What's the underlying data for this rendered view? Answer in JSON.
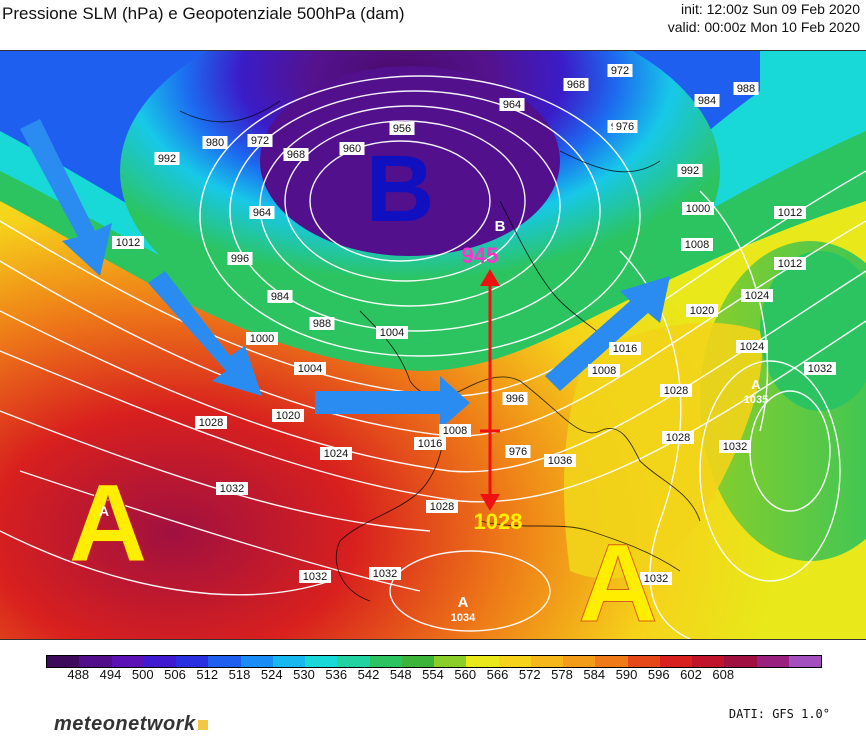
{
  "header": {
    "title": "Pressione SLM (hPa) e Geopotenziale 500hPa (dam)",
    "init": "init: 12:00z Sun 09 Feb 2020",
    "valid": "valid: 00:00z Mon 10 Feb 2020"
  },
  "map": {
    "systems": [
      {
        "letter": "B",
        "kind": "low",
        "color": "#1010c0"
      },
      {
        "letter": "A",
        "kind": "high-west",
        "color": "#ffee00"
      },
      {
        "letter": "A",
        "kind": "high-med",
        "color": "#ffee00"
      }
    ],
    "small_centers": [
      {
        "letter": "B",
        "value": "945"
      },
      {
        "letter": "A",
        "value": "1034"
      },
      {
        "letter": "A",
        "value": "1035"
      },
      {
        "letter": "A",
        "value": ""
      }
    ],
    "annotations": {
      "low_value": "945",
      "high_value": "1028",
      "low_color": "#ff33cc",
      "high_color": "#ffee00",
      "arrow_color": "#ee1111",
      "flow_arrow_color": "#2a8cf0"
    },
    "isobar_labels": [
      "972",
      "980",
      "964",
      "968",
      "976",
      "984",
      "988",
      "992",
      "1000",
      "1012",
      "956",
      "960",
      "972",
      "968",
      "964",
      "980",
      "992",
      "996",
      "984",
      "988",
      "1000",
      "1004",
      "1008",
      "1012",
      "1016",
      "1020",
      "1024",
      "1028",
      "1032",
      "976",
      "996",
      "1008",
      "1020",
      "1024",
      "1028",
      "1032",
      "1032",
      "1028",
      "1032",
      "1004",
      "1016",
      "1008",
      "1024",
      "1032",
      "1012",
      "1028",
      "1032",
      "1036"
    ],
    "geopotential_scale": [
      "488",
      "494",
      "500",
      "506",
      "512",
      "518",
      "524",
      "530",
      "536",
      "542",
      "548",
      "554",
      "560",
      "566",
      "572",
      "578",
      "584",
      "590",
      "596",
      "602",
      "608"
    ],
    "scale_colors": [
      "#3d0a5c",
      "#520e8a",
      "#5b11b6",
      "#3f1ad0",
      "#2a2fe0",
      "#1e5ff0",
      "#1a8cf5",
      "#17b8f0",
      "#18d8d8",
      "#20d3a0",
      "#2cc460",
      "#3cb43a",
      "#8bce2a",
      "#e8e81a",
      "#f6d21a",
      "#f5b71a",
      "#f29c1a",
      "#ee7a18",
      "#e6481a",
      "#d8201e",
      "#c0142a",
      "#a01040",
      "#9a2080",
      "#a44fc0"
    ]
  },
  "footer": {
    "logo_text": "meteonetwork",
    "source": "DATI: GFS 1.0°"
  }
}
